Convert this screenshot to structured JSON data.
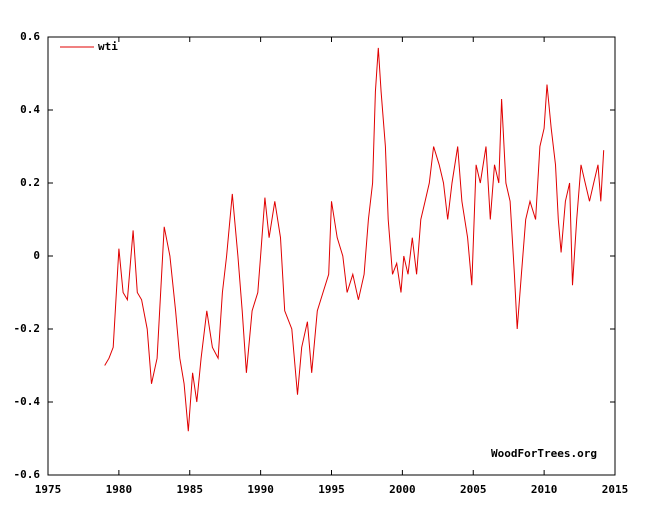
{
  "chart_data": {
    "type": "line",
    "legend": "top-left",
    "annotation": "WoodForTrees.org",
    "xlim": [
      1975,
      2015
    ],
    "xticks": [
      1975,
      1980,
      1985,
      1990,
      1995,
      2000,
      2005,
      2010,
      2015
    ],
    "ylim": [
      -0.6,
      0.6
    ],
    "yticks": [
      0.6,
      0.4,
      0.2,
      0,
      -0.2,
      -0.4,
      -0.6
    ],
    "x": [
      1979.0,
      1979.3,
      1979.6,
      1980.0,
      1980.3,
      1980.6,
      1981.0,
      1981.3,
      1981.6,
      1982.0,
      1982.3,
      1982.7,
      1983.2,
      1983.6,
      1984.0,
      1984.3,
      1984.6,
      1984.9,
      1985.2,
      1985.5,
      1985.8,
      1986.2,
      1986.6,
      1987.0,
      1987.3,
      1987.6,
      1988.0,
      1988.4,
      1988.7,
      1989.0,
      1989.4,
      1989.8,
      1990.0,
      1990.3,
      1990.6,
      1991.0,
      1991.4,
      1991.7,
      1992.2,
      1992.6,
      1992.9,
      1993.3,
      1993.6,
      1994.0,
      1994.4,
      1994.8,
      1995.0,
      1995.4,
      1995.8,
      1996.1,
      1996.5,
      1996.9,
      1997.3,
      1997.6,
      1997.9,
      1998.1,
      1998.3,
      1998.5,
      1998.8,
      1999.0,
      1999.3,
      1999.6,
      1999.9,
      2000.1,
      2000.4,
      2000.7,
      2001.0,
      2001.3,
      2001.6,
      2001.9,
      2002.2,
      2002.6,
      2002.9,
      2003.2,
      2003.5,
      2003.9,
      2004.2,
      2004.6,
      2004.9,
      2005.2,
      2005.5,
      2005.9,
      2006.2,
      2006.5,
      2006.8,
      2007.0,
      2007.3,
      2007.6,
      2007.9,
      2008.1,
      2008.4,
      2008.7,
      2009.0,
      2009.4,
      2009.7,
      2010.0,
      2010.2,
      2010.5,
      2010.8,
      2011.0,
      2011.2,
      2011.5,
      2011.8,
      2012.0,
      2012.3,
      2012.6,
      2012.9,
      2013.2,
      2013.5,
      2013.8,
      2014.0,
      2014.2
    ],
    "series": [
      {
        "name": "wti",
        "color": "#e00000",
        "values": [
          -0.3,
          -0.28,
          -0.25,
          0.02,
          -0.1,
          -0.12,
          0.07,
          -0.1,
          -0.12,
          -0.2,
          -0.35,
          -0.28,
          0.08,
          0.0,
          -0.15,
          -0.28,
          -0.35,
          -0.48,
          -0.32,
          -0.4,
          -0.28,
          -0.15,
          -0.25,
          -0.28,
          -0.1,
          0.0,
          0.17,
          0.0,
          -0.15,
          -0.32,
          -0.15,
          -0.1,
          0.0,
          0.16,
          0.05,
          0.15,
          0.05,
          -0.15,
          -0.2,
          -0.38,
          -0.25,
          -0.18,
          -0.32,
          -0.15,
          -0.1,
          -0.05,
          0.15,
          0.05,
          0.0,
          -0.1,
          -0.05,
          -0.12,
          -0.05,
          0.1,
          0.2,
          0.45,
          0.57,
          0.45,
          0.3,
          0.1,
          -0.05,
          -0.02,
          -0.1,
          0.0,
          -0.05,
          0.05,
          -0.05,
          0.1,
          0.15,
          0.2,
          0.3,
          0.25,
          0.2,
          0.1,
          0.2,
          0.3,
          0.15,
          0.05,
          -0.08,
          0.25,
          0.2,
          0.3,
          0.1,
          0.25,
          0.2,
          0.43,
          0.2,
          0.15,
          -0.05,
          -0.2,
          -0.05,
          0.1,
          0.15,
          0.1,
          0.3,
          0.35,
          0.47,
          0.35,
          0.25,
          0.1,
          0.01,
          0.15,
          0.2,
          -0.08,
          0.1,
          0.25,
          0.2,
          0.15,
          0.2,
          0.25,
          0.15,
          0.29
        ]
      }
    ]
  }
}
